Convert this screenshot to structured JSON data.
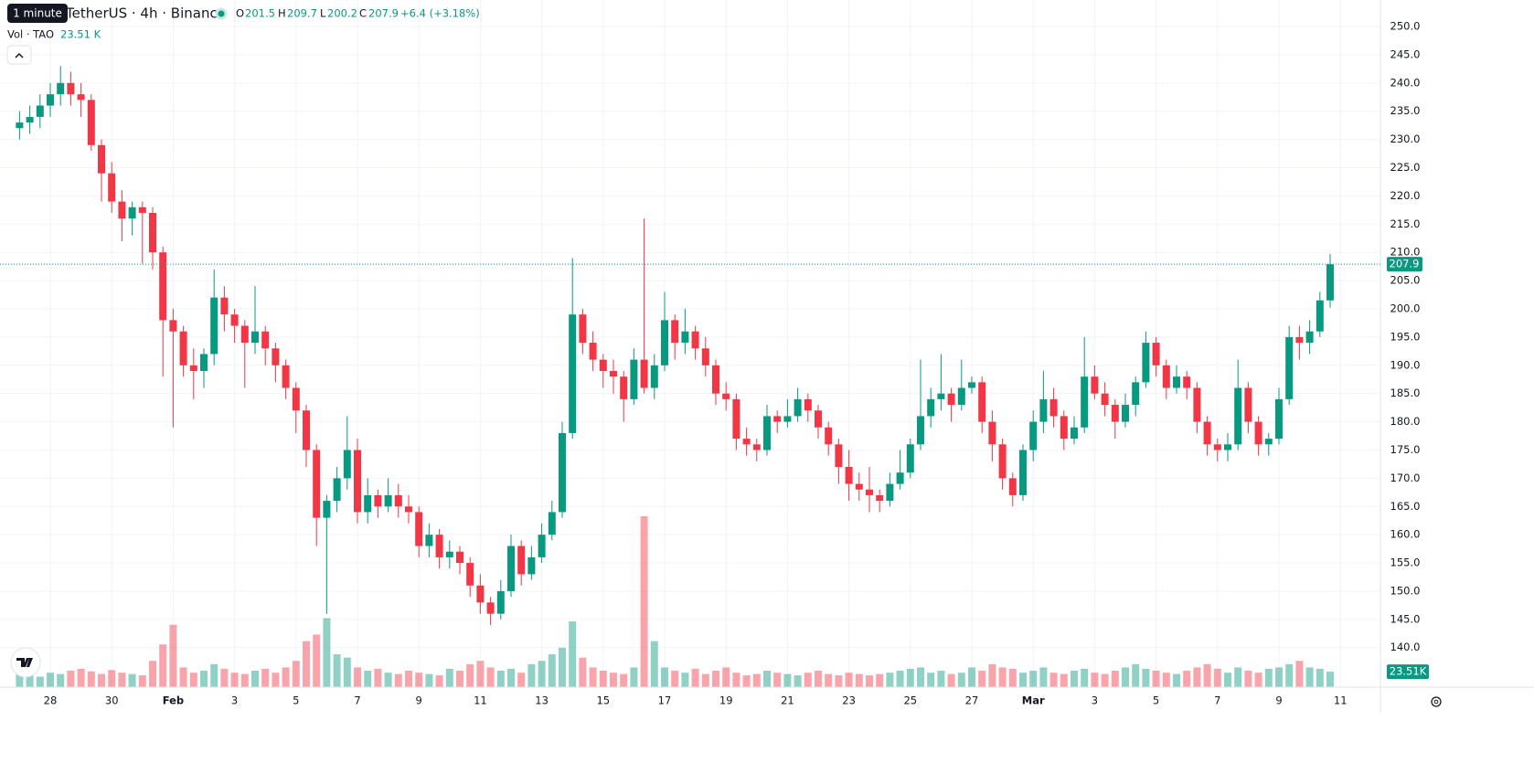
{
  "chart_data": {
    "type": "candlestick",
    "tooltip": "1 minute",
    "title": "TetherUS · 4h · Binance",
    "ohlc_labels": [
      "O",
      "H",
      "L",
      "C"
    ],
    "change_label": "+6.4 (+3.18%)",
    "volume_title": "Vol · TAO",
    "volume_legend_label": "23.51 K",
    "volume_badge_label": "23.51K",
    "up_color": "#089981",
    "down_color": "#f23645",
    "grid": true,
    "ylim": [
      133,
      254.7
    ],
    "yticks": [
      {
        "value": 140,
        "label": "140.0"
      },
      {
        "value": 145,
        "label": "145.0"
      },
      {
        "value": 150,
        "label": "150.0"
      },
      {
        "value": 155,
        "label": "155.0"
      },
      {
        "value": 160,
        "label": "160.0"
      },
      {
        "value": 165,
        "label": "165.0"
      },
      {
        "value": 170,
        "label": "170.0"
      },
      {
        "value": 175,
        "label": "175.0"
      },
      {
        "value": 180,
        "label": "180.0"
      },
      {
        "value": 185,
        "label": "185.0"
      },
      {
        "value": 190,
        "label": "190.0"
      },
      {
        "value": 195,
        "label": "195.0"
      },
      {
        "value": 200,
        "label": "200.0"
      },
      {
        "value": 205,
        "label": "205.0"
      },
      {
        "value": 210,
        "label": "210.0"
      },
      {
        "value": 215,
        "label": "215.0"
      },
      {
        "value": 220,
        "label": "220.0"
      },
      {
        "value": 225,
        "label": "225.0"
      },
      {
        "value": 230,
        "label": "230.0"
      },
      {
        "value": 235,
        "label": "235.0"
      },
      {
        "value": 240,
        "label": "240.0"
      },
      {
        "value": 245,
        "label": "245.0"
      },
      {
        "value": 250,
        "label": "250.0"
      }
    ],
    "categories": [
      null,
      null,
      null,
      "28",
      null,
      null,
      null,
      null,
      null,
      "30",
      null,
      null,
      null,
      null,
      null,
      "Feb",
      null,
      null,
      null,
      null,
      null,
      "3",
      null,
      null,
      null,
      null,
      null,
      "5",
      null,
      null,
      null,
      null,
      null,
      "7",
      null,
      null,
      null,
      null,
      null,
      "9",
      null,
      null,
      null,
      null,
      null,
      "11",
      null,
      null,
      null,
      null,
      null,
      "13",
      null,
      null,
      null,
      null,
      null,
      "15",
      null,
      null,
      null,
      null,
      null,
      "17",
      null,
      null,
      null,
      null,
      null,
      "19",
      null,
      null,
      null,
      null,
      null,
      "21",
      null,
      null,
      null,
      null,
      null,
      "23",
      null,
      null,
      null,
      null,
      null,
      "25",
      null,
      null,
      null,
      null,
      null,
      "27",
      null,
      null,
      null,
      null,
      null,
      "Mar",
      null,
      null,
      null,
      null,
      null,
      "3",
      null,
      null,
      null,
      null,
      null,
      "5",
      null,
      null,
      null,
      null,
      null,
      "7",
      null,
      null,
      null,
      null,
      null,
      "9",
      null,
      null,
      null,
      null,
      null,
      "11"
    ],
    "candles": [
      [
        232,
        235,
        230,
        233
      ],
      [
        233,
        236,
        231,
        234
      ],
      [
        234,
        238,
        232,
        236
      ],
      [
        236,
        240,
        234,
        238
      ],
      [
        238,
        243,
        236,
        240
      ],
      [
        240,
        242,
        236,
        238
      ],
      [
        238,
        240,
        234,
        237
      ],
      [
        237,
        238,
        228,
        229
      ],
      [
        229,
        230,
        219,
        224
      ],
      [
        224,
        226,
        217,
        219
      ],
      [
        219,
        221,
        212,
        216
      ],
      [
        216,
        219,
        213,
        218
      ],
      [
        218,
        219,
        208,
        217
      ],
      [
        217,
        218,
        207,
        210
      ],
      [
        210,
        211,
        188,
        198
      ],
      [
        198,
        200,
        179,
        196
      ],
      [
        196,
        197,
        188,
        190
      ],
      [
        190,
        193,
        184,
        189
      ],
      [
        189,
        193,
        186,
        192
      ],
      [
        192,
        207,
        190,
        202
      ],
      [
        202,
        204,
        196,
        199
      ],
      [
        199,
        200,
        194,
        197
      ],
      [
        197,
        198,
        186,
        194
      ],
      [
        194,
        204,
        192,
        196
      ],
      [
        196,
        197,
        190,
        193
      ],
      [
        193,
        194,
        187,
        190
      ],
      [
        190,
        191,
        184,
        186
      ],
      [
        186,
        187,
        178,
        182
      ],
      [
        182,
        183,
        172,
        175
      ],
      [
        175,
        176,
        158,
        163
      ],
      [
        163,
        167,
        146,
        166
      ],
      [
        166,
        172,
        164,
        170
      ],
      [
        170,
        181,
        168,
        175
      ],
      [
        175,
        177,
        162,
        164
      ],
      [
        164,
        170,
        162,
        167
      ],
      [
        167,
        168,
        163,
        165
      ],
      [
        165,
        170,
        164,
        167
      ],
      [
        167,
        169,
        163,
        165
      ],
      [
        165,
        167,
        162,
        164
      ],
      [
        164,
        165,
        156,
        158
      ],
      [
        158,
        162,
        156,
        160
      ],
      [
        160,
        161,
        154,
        156
      ],
      [
        156,
        159,
        154,
        157
      ],
      [
        157,
        158,
        153,
        155
      ],
      [
        155,
        156,
        149,
        151
      ],
      [
        151,
        153,
        146,
        148
      ],
      [
        148,
        149,
        144,
        146
      ],
      [
        146,
        152,
        145,
        150
      ],
      [
        150,
        160,
        149,
        158
      ],
      [
        158,
        159,
        151,
        153
      ],
      [
        153,
        158,
        152,
        156
      ],
      [
        156,
        162,
        155,
        160
      ],
      [
        160,
        166,
        159,
        164
      ],
      [
        164,
        180,
        163,
        178
      ],
      [
        178,
        209,
        177,
        199
      ],
      [
        199,
        200,
        192,
        194
      ],
      [
        194,
        196,
        189,
        191
      ],
      [
        191,
        192,
        186,
        189
      ],
      [
        189,
        191,
        185,
        188
      ],
      [
        188,
        189,
        180,
        184
      ],
      [
        184,
        193,
        183,
        191
      ],
      [
        191,
        216,
        185,
        186
      ],
      [
        186,
        192,
        184,
        190
      ],
      [
        190,
        203,
        189,
        198
      ],
      [
        198,
        199,
        191,
        194
      ],
      [
        194,
        200,
        192,
        196
      ],
      [
        196,
        197,
        191,
        193
      ],
      [
        193,
        195,
        188,
        190
      ],
      [
        190,
        191,
        183,
        185
      ],
      [
        185,
        187,
        182,
        184
      ],
      [
        184,
        185,
        175,
        177
      ],
      [
        177,
        179,
        174,
        176
      ],
      [
        176,
        177,
        173,
        175
      ],
      [
        175,
        183,
        174,
        181
      ],
      [
        181,
        182,
        178,
        180
      ],
      [
        180,
        184,
        179,
        181
      ],
      [
        181,
        186,
        180,
        184
      ],
      [
        184,
        185,
        180,
        182
      ],
      [
        182,
        183,
        177,
        179
      ],
      [
        179,
        180,
        174,
        176
      ],
      [
        176,
        177,
        169,
        172
      ],
      [
        172,
        175,
        166,
        169
      ],
      [
        169,
        171,
        166,
        168
      ],
      [
        168,
        172,
        164,
        167
      ],
      [
        167,
        168,
        164,
        166
      ],
      [
        166,
        171,
        165,
        169
      ],
      [
        169,
        175,
        168,
        171
      ],
      [
        171,
        177,
        170,
        176
      ],
      [
        176,
        191,
        175,
        181
      ],
      [
        181,
        186,
        179,
        184
      ],
      [
        184,
        192,
        182,
        185
      ],
      [
        185,
        186,
        180,
        183
      ],
      [
        183,
        191,
        182,
        186
      ],
      [
        186,
        188,
        185,
        187
      ],
      [
        187,
        188,
        178,
        180
      ],
      [
        180,
        182,
        173,
        176
      ],
      [
        176,
        177,
        168,
        170
      ],
      [
        170,
        171,
        165,
        167
      ],
      [
        167,
        176,
        166,
        175
      ],
      [
        175,
        182,
        173,
        180
      ],
      [
        180,
        189,
        178,
        184
      ],
      [
        184,
        186,
        179,
        181
      ],
      [
        181,
        182,
        175,
        177
      ],
      [
        177,
        181,
        176,
        179
      ],
      [
        179,
        195,
        178,
        188
      ],
      [
        188,
        190,
        184,
        185
      ],
      [
        185,
        187,
        181,
        183
      ],
      [
        183,
        184,
        177,
        180
      ],
      [
        180,
        185,
        179,
        183
      ],
      [
        183,
        188,
        181,
        187
      ],
      [
        187,
        196,
        186,
        194
      ],
      [
        194,
        195,
        188,
        190
      ],
      [
        190,
        191,
        184,
        186
      ],
      [
        186,
        190,
        185,
        188
      ],
      [
        188,
        189,
        184,
        186
      ],
      [
        186,
        187,
        178,
        180
      ],
      [
        180,
        181,
        174,
        176
      ],
      [
        176,
        177,
        173,
        175
      ],
      [
        175,
        178,
        173,
        176
      ],
      [
        176,
        191,
        175,
        186
      ],
      [
        186,
        187,
        178,
        180
      ],
      [
        180,
        181,
        174,
        176
      ],
      [
        176,
        178,
        174,
        177
      ],
      [
        177,
        186,
        176,
        184
      ],
      [
        184,
        197,
        183,
        195
      ],
      [
        195,
        197,
        191,
        194
      ],
      [
        194,
        198,
        192,
        196
      ],
      [
        196,
        203,
        195,
        201.5
      ],
      [
        201.5,
        209.7,
        200.2,
        207.9
      ],
      null
    ],
    "volume": [
      20,
      18,
      16,
      22,
      20,
      25,
      28,
      24,
      20,
      26,
      22,
      20,
      18,
      40,
      65,
      95,
      30,
      22,
      25,
      35,
      28,
      22,
      20,
      25,
      28,
      22,
      30,
      40,
      70,
      80,
      105,
      50,
      45,
      30,
      25,
      28,
      22,
      20,
      25,
      22,
      20,
      18,
      28,
      25,
      35,
      40,
      30,
      25,
      28,
      22,
      35,
      40,
      50,
      60,
      100,
      45,
      30,
      25,
      22,
      20,
      30,
      260,
      70,
      30,
      25,
      22,
      28,
      20,
      25,
      30,
      22,
      18,
      20,
      25,
      22,
      20,
      18,
      22,
      25,
      20,
      18,
      22,
      20,
      18,
      20,
      22,
      25,
      28,
      30,
      22,
      25,
      20,
      22,
      30,
      25,
      35,
      30,
      28,
      22,
      25,
      30,
      22,
      20,
      25,
      28,
      22,
      20,
      25,
      30,
      35,
      28,
      25,
      22,
      20,
      25,
      30,
      35,
      28,
      22,
      30,
      25,
      22,
      28,
      30,
      35,
      40,
      30,
      28,
      23.51,
      null
    ]
  }
}
